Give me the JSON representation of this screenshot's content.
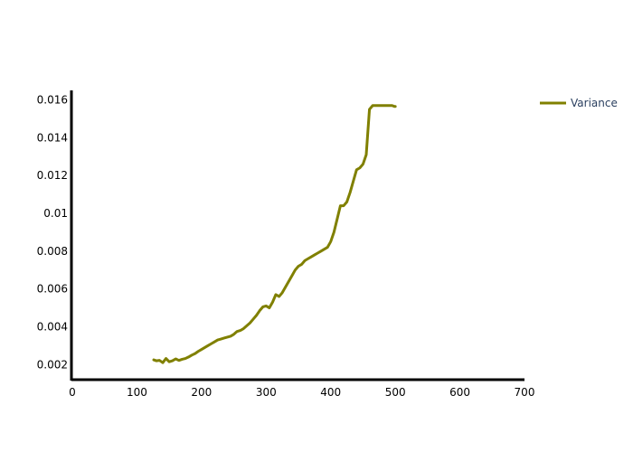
{
  "chart_data": {
    "type": "line",
    "title": "",
    "xlabel": "",
    "ylabel": "",
    "xlim": [
      0,
      700
    ],
    "ylim": [
      0.0012,
      0.0165
    ],
    "grid": false,
    "legend_position": "top-right",
    "x_ticks": [
      0,
      100,
      200,
      300,
      400,
      500,
      600,
      700
    ],
    "x_tick_labels": [
      "0",
      "100",
      "200",
      "300",
      "400",
      "500",
      "600",
      "700"
    ],
    "y_ticks": [
      0.002,
      0.004,
      0.006,
      0.008,
      0.01,
      0.012,
      0.014,
      0.016
    ],
    "y_tick_labels": [
      "0.002",
      "0.004",
      "0.006",
      "0.008",
      "0.01",
      "0.012",
      "0.014",
      "0.016"
    ],
    "series": [
      {
        "name": "Variance",
        "color": "#808000",
        "x": [
          126,
          130,
          135,
          140,
          145,
          150,
          155,
          160,
          165,
          170,
          175,
          180,
          185,
          190,
          195,
          200,
          205,
          210,
          215,
          220,
          225,
          230,
          235,
          240,
          245,
          250,
          255,
          260,
          265,
          270,
          275,
          280,
          285,
          290,
          295,
          300,
          305,
          310,
          315,
          320,
          325,
          330,
          335,
          340,
          345,
          350,
          355,
          360,
          365,
          370,
          375,
          380,
          385,
          390,
          395,
          400,
          405,
          410,
          415,
          420,
          425,
          430,
          435,
          440,
          445,
          450,
          455,
          460,
          465,
          470,
          475,
          480,
          485,
          490,
          495,
          499,
          500
        ],
        "values": [
          0.00225,
          0.0022,
          0.00222,
          0.0021,
          0.00232,
          0.00215,
          0.0022,
          0.0023,
          0.00222,
          0.00228,
          0.00232,
          0.0024,
          0.0025,
          0.00258,
          0.0027,
          0.0028,
          0.0029,
          0.003,
          0.0031,
          0.0032,
          0.0033,
          0.00335,
          0.0034,
          0.00345,
          0.0035,
          0.0036,
          0.00375,
          0.0038,
          0.0039,
          0.00405,
          0.0042,
          0.0044,
          0.0046,
          0.00485,
          0.00505,
          0.0051,
          0.005,
          0.0053,
          0.0057,
          0.0056,
          0.0058,
          0.0061,
          0.0064,
          0.0067,
          0.007,
          0.0072,
          0.0073,
          0.0075,
          0.0076,
          0.0077,
          0.0078,
          0.0079,
          0.008,
          0.0081,
          0.0082,
          0.0085,
          0.009,
          0.0097,
          0.0104,
          0.0104,
          0.0106,
          0.0111,
          0.0117,
          0.0123,
          0.0124,
          0.0126,
          0.0131,
          0.0155,
          0.0157,
          0.0157,
          0.0157,
          0.0157,
          0.0157,
          0.0157,
          0.0157,
          0.01565,
          0.01565
        ]
      }
    ]
  }
}
